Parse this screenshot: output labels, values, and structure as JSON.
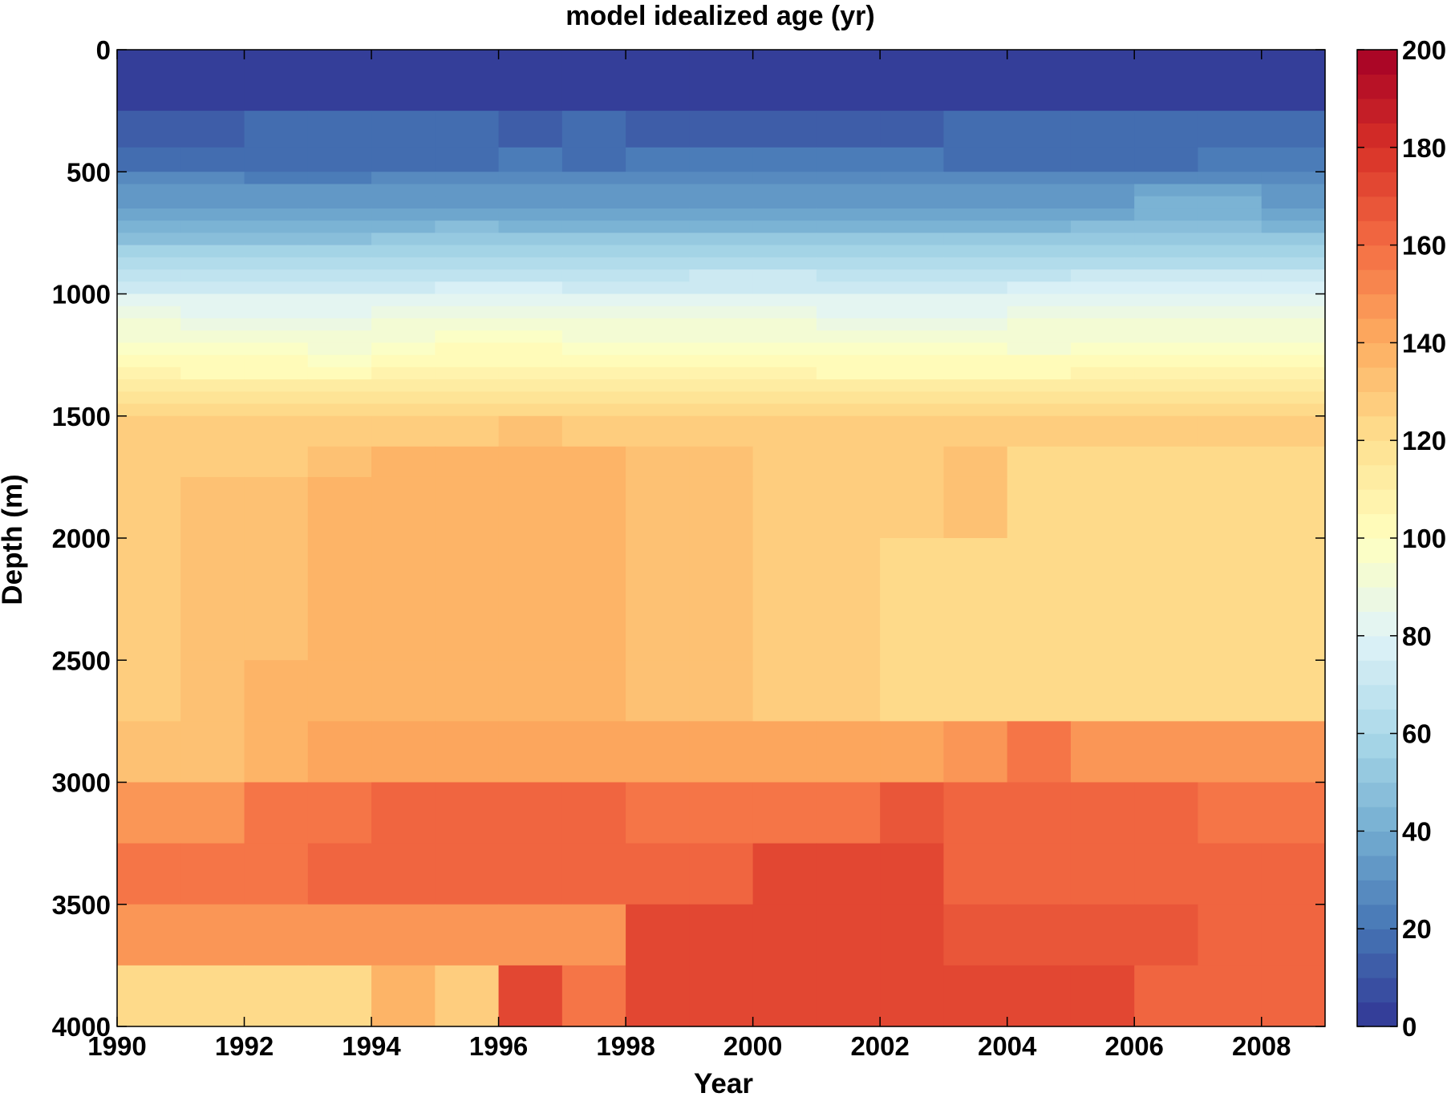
{
  "chart_data": {
    "type": "heatmap",
    "title": "model idealized age (yr)",
    "xlabel": "Year",
    "ylabel": "Depth (m)",
    "xlim": [
      1990,
      2009
    ],
    "ylim": [
      0,
      4000
    ],
    "y_reversed": true,
    "x_ticks": [
      1990,
      1992,
      1994,
      1996,
      1998,
      2000,
      2002,
      2004,
      2006,
      2008
    ],
    "y_ticks": [
      0,
      500,
      1000,
      1500,
      2000,
      2500,
      3000,
      3500,
      4000
    ],
    "years": [
      1990,
      1991,
      1992,
      1993,
      1994,
      1995,
      1996,
      1997,
      1998,
      1999,
      2000,
      2001,
      2002,
      2003,
      2004,
      2005,
      2006,
      2007,
      2008
    ],
    "depth_edges": [
      0,
      250,
      400,
      500,
      550,
      600,
      650,
      700,
      750,
      800,
      850,
      900,
      950,
      1000,
      1050,
      1100,
      1150,
      1200,
      1250,
      1300,
      1350,
      1400,
      1450,
      1500,
      1625,
      1750,
      2000,
      2500,
      2750,
      3000,
      3250,
      3500,
      3750,
      4000
    ],
    "values": [
      [
        2,
        2,
        2,
        2,
        2,
        3,
        3,
        2,
        2,
        2,
        3,
        3,
        2,
        2,
        2,
        3,
        3,
        3,
        3
      ],
      [
        12,
        12,
        15,
        15,
        15,
        15,
        14,
        15,
        14,
        14,
        14,
        14,
        14,
        15,
        15,
        15,
        15,
        15,
        15
      ],
      [
        18,
        18,
        18,
        18,
        18,
        18,
        20,
        18,
        20,
        20,
        20,
        20,
        20,
        18,
        18,
        18,
        18,
        20,
        20
      ],
      [
        25,
        25,
        22,
        22,
        25,
        25,
        25,
        25,
        25,
        25,
        25,
        25,
        25,
        25,
        25,
        25,
        25,
        25,
        25
      ],
      [
        30,
        30,
        30,
        30,
        30,
        30,
        30,
        30,
        30,
        30,
        30,
        30,
        30,
        30,
        30,
        30,
        35,
        35,
        30
      ],
      [
        34,
        34,
        34,
        34,
        34,
        34,
        34,
        34,
        34,
        34,
        34,
        34,
        34,
        34,
        34,
        34,
        40,
        40,
        34
      ],
      [
        38,
        38,
        38,
        38,
        38,
        38,
        38,
        38,
        38,
        38,
        38,
        38,
        38,
        38,
        38,
        38,
        44,
        44,
        38
      ],
      [
        42,
        42,
        42,
        42,
        42,
        46,
        42,
        42,
        42,
        42,
        42,
        42,
        42,
        42,
        42,
        46,
        48,
        48,
        44
      ],
      [
        46,
        46,
        46,
        46,
        50,
        50,
        50,
        50,
        50,
        50,
        50,
        50,
        50,
        50,
        50,
        50,
        52,
        52,
        50
      ],
      [
        55,
        55,
        55,
        55,
        55,
        55,
        55,
        55,
        55,
        55,
        55,
        55,
        55,
        55,
        55,
        58,
        58,
        58,
        58
      ],
      [
        62,
        60,
        60,
        60,
        62,
        62,
        62,
        60,
        62,
        62,
        62,
        60,
        60,
        60,
        62,
        62,
        62,
        62,
        62
      ],
      [
        68,
        68,
        68,
        68,
        68,
        68,
        68,
        68,
        68,
        70,
        70,
        68,
        68,
        68,
        68,
        70,
        70,
        70,
        70
      ],
      [
        74,
        74,
        74,
        74,
        74,
        76,
        76,
        74,
        74,
        74,
        74,
        74,
        74,
        74,
        76,
        78,
        78,
        78,
        78
      ],
      [
        80,
        80,
        80,
        80,
        80,
        84,
        82,
        82,
        80,
        80,
        80,
        80,
        80,
        80,
        80,
        82,
        84,
        82,
        82
      ],
      [
        86,
        84,
        84,
        84,
        86,
        86,
        86,
        86,
        86,
        86,
        86,
        84,
        84,
        84,
        86,
        86,
        86,
        86,
        86
      ],
      [
        90,
        88,
        88,
        88,
        90,
        90,
        92,
        90,
        90,
        90,
        90,
        88,
        88,
        88,
        90,
        90,
        90,
        90,
        90
      ],
      [
        94,
        92,
        92,
        90,
        94,
        96,
        96,
        94,
        94,
        94,
        94,
        92,
        92,
        92,
        92,
        94,
        94,
        94,
        94
      ],
      [
        98,
        96,
        96,
        94,
        98,
        100,
        100,
        98,
        98,
        98,
        98,
        96,
        96,
        96,
        94,
        98,
        98,
        98,
        98
      ],
      [
        102,
        100,
        100,
        98,
        102,
        104,
        104,
        102,
        102,
        102,
        102,
        100,
        100,
        100,
        100,
        102,
        102,
        102,
        102
      ],
      [
        108,
        104,
        104,
        104,
        106,
        108,
        108,
        106,
        106,
        106,
        106,
        104,
        104,
        104,
        104,
        106,
        106,
        106,
        106
      ],
      [
        114,
        110,
        110,
        110,
        110,
        112,
        112,
        112,
        112,
        112,
        112,
        110,
        110,
        110,
        110,
        110,
        110,
        110,
        110
      ],
      [
        118,
        116,
        116,
        116,
        116,
        116,
        116,
        116,
        116,
        116,
        116,
        116,
        116,
        116,
        116,
        116,
        116,
        116,
        116
      ],
      [
        124,
        124,
        120,
        120,
        122,
        122,
        124,
        122,
        120,
        120,
        120,
        120,
        120,
        120,
        122,
        120,
        122,
        120,
        122
      ],
      [
        128,
        128,
        128,
        128,
        128,
        128,
        130,
        128,
        128,
        128,
        128,
        128,
        128,
        128,
        128,
        128,
        128,
        128,
        128
      ],
      [
        128,
        128,
        128,
        132,
        136,
        136,
        136,
        136,
        132,
        132,
        128,
        128,
        128,
        130,
        124,
        124,
        124,
        124,
        124
      ],
      [
        128,
        132,
        132,
        136,
        136,
        136,
        136,
        136,
        132,
        132,
        128,
        128,
        128,
        130,
        124,
        124,
        124,
        124,
        124
      ],
      [
        128,
        132,
        132,
        136,
        136,
        136,
        136,
        136,
        132,
        132,
        128,
        128,
        124,
        124,
        124,
        124,
        124,
        124,
        124
      ],
      [
        128,
        132,
        136,
        136,
        136,
        136,
        136,
        136,
        132,
        132,
        128,
        128,
        124,
        124,
        124,
        124,
        122,
        122,
        124
      ],
      [
        132,
        132,
        136,
        144,
        144,
        144,
        144,
        144,
        144,
        144,
        140,
        140,
        140,
        146,
        156,
        146,
        146,
        146,
        146
      ],
      [
        148,
        148,
        158,
        158,
        160,
        160,
        160,
        160,
        156,
        156,
        156,
        156,
        166,
        160,
        160,
        160,
        160,
        156,
        156
      ],
      [
        156,
        156,
        156,
        160,
        160,
        160,
        160,
        160,
        160,
        164,
        170,
        170,
        170,
        164,
        164,
        164,
        164,
        164,
        164
      ],
      [
        148,
        148,
        148,
        148,
        148,
        148,
        148,
        148,
        174,
        174,
        174,
        174,
        174,
        166,
        166,
        166,
        166,
        164,
        164
      ],
      [
        120,
        120,
        124,
        124,
        136,
        128,
        172,
        156,
        174,
        174,
        174,
        174,
        174,
        174,
        174,
        174,
        164,
        164,
        164
      ]
    ],
    "colorbar": {
      "min": 0,
      "max": 200,
      "step": 5,
      "ticks": [
        0,
        20,
        40,
        60,
        80,
        100,
        120,
        140,
        160,
        180,
        200
      ],
      "colormap": "RdYlBu_r"
    }
  }
}
